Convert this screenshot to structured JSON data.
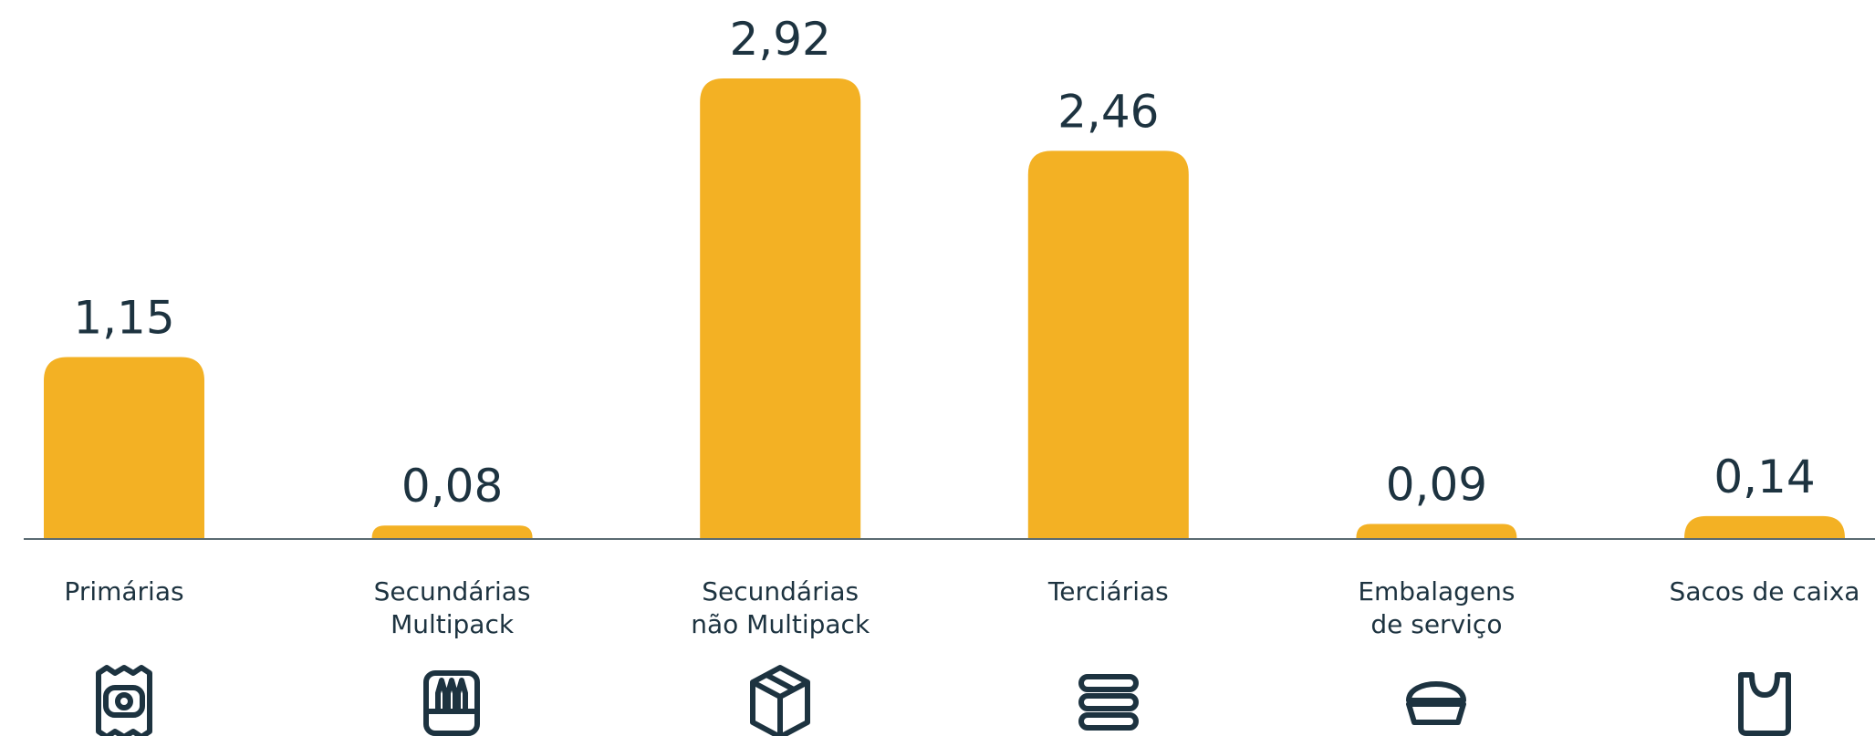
{
  "chart_data": {
    "type": "bar",
    "categories": [
      [
        "Primárias"
      ],
      [
        "Secundárias",
        "Multipack"
      ],
      [
        "Secundárias",
        "não Multipack"
      ],
      [
        "Terciárias"
      ],
      [
        "Embalagens",
        "de serviço"
      ],
      [
        "Sacos de caixa"
      ]
    ],
    "values": [
      1.15,
      0.08,
      2.92,
      2.46,
      0.09,
      0.14
    ],
    "value_labels": [
      "1,15",
      "0,08",
      "2,92",
      "2,46",
      "0,09",
      "0,14"
    ],
    "color": "#f3b124"
  }
}
